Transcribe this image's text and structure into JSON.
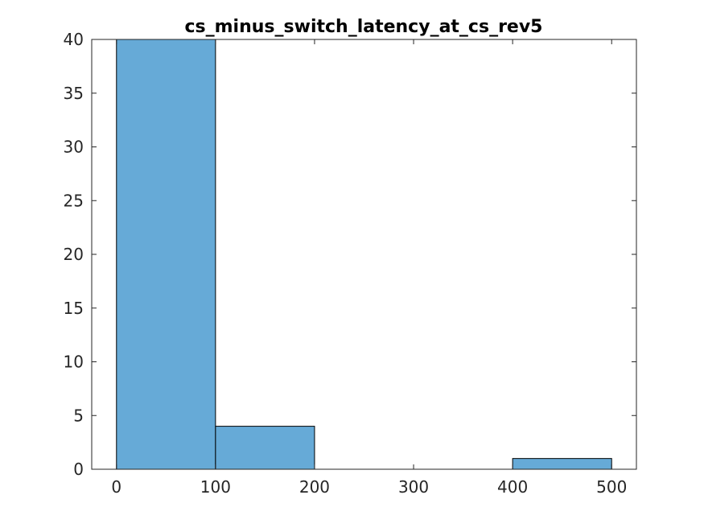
{
  "chart_data": {
    "type": "bar",
    "title": "cs_minus_switch_latency_at_cs_rev5",
    "xlabel": "",
    "ylabel": "",
    "bin_edges": [
      0,
      100,
      200,
      300,
      400,
      500
    ],
    "counts": [
      40,
      4,
      0,
      0,
      1
    ],
    "xlim": [
      -25,
      525
    ],
    "ylim": [
      0,
      40
    ],
    "xticks": [
      0,
      100,
      200,
      300,
      400,
      500
    ],
    "xtick_labels": [
      "0",
      "100",
      "200",
      "300",
      "400",
      "500"
    ],
    "yticks": [
      0,
      5,
      10,
      15,
      20,
      25,
      30,
      35,
      40
    ],
    "ytick_labels": [
      "0",
      "5",
      "10",
      "15",
      "20",
      "25",
      "30",
      "35",
      "40"
    ],
    "grid": false,
    "legend": "none",
    "bar_color": "#66aad7",
    "edge_color": "#000000"
  }
}
